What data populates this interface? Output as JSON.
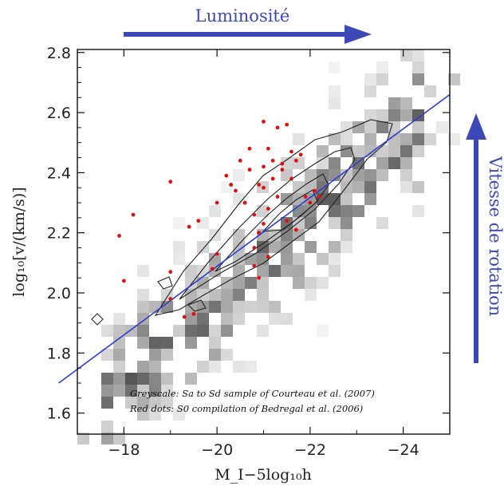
{
  "chart_data": {
    "type": "scatter",
    "xlabel": "M_I−5log₁₀h",
    "ylabel": "log₁₀[v/(km/s)]",
    "xlim": [
      -17,
      -25
    ],
    "ylim": [
      1.53,
      2.81
    ],
    "x_ticks": [
      -18,
      -20,
      -22,
      -24
    ],
    "x_tick_labels": [
      "−18",
      "−20",
      "−22",
      "−24"
    ],
    "y_ticks": [
      1.6,
      1.8,
      2.0,
      2.2,
      2.4,
      2.6,
      2.8
    ],
    "y_tick_labels": [
      "1.6",
      "1.8",
      "2.0",
      "2.2",
      "2.4",
      "2.6",
      "2.8"
    ],
    "grid": false,
    "annotations": [
      "Greyscale: Sa to Sd sample of Courteau et al. (2007)",
      "Red dots: S0 compilation of Bedregal et al. (2006)"
    ],
    "fit_line": {
      "color": "#2c3fd0",
      "points": [
        [
          -16.6,
          1.7
        ],
        [
          -25.0,
          2.66
        ]
      ]
    },
    "series": [
      {
        "color": "#e01010",
        "points": [
          [
            -17.9,
            2.19
          ],
          [
            -18.0,
            2.04
          ],
          [
            -18.2,
            2.26
          ],
          [
            -19.0,
            2.37
          ],
          [
            -19.0,
            2.07
          ],
          [
            -19.0,
            1.98
          ],
          [
            -19.4,
            2.22
          ],
          [
            -19.6,
            2.24
          ],
          [
            -19.5,
            1.93
          ],
          [
            -19.3,
            1.92
          ],
          [
            -19.9,
            2.08
          ],
          [
            -20.0,
            2.13
          ],
          [
            -20.0,
            2.3
          ],
          [
            -20.2,
            2.39
          ],
          [
            -20.3,
            2.36
          ],
          [
            -20.5,
            2.44
          ],
          [
            -20.4,
            2.34
          ],
          [
            -20.6,
            2.3
          ],
          [
            -20.7,
            2.48
          ],
          [
            -20.7,
            2.41
          ],
          [
            -20.8,
            2.26
          ],
          [
            -20.8,
            2.15
          ],
          [
            -20.8,
            2.09
          ],
          [
            -20.9,
            2.2
          ],
          [
            -20.9,
            2.36
          ],
          [
            -21.0,
            2.57
          ],
          [
            -21.0,
            2.42
          ],
          [
            -21.0,
            2.23
          ],
          [
            -21.1,
            2.48
          ],
          [
            -21.1,
            2.28
          ],
          [
            -21.1,
            2.12
          ],
          [
            -21.2,
            2.44
          ],
          [
            -21.2,
            2.38
          ],
          [
            -21.3,
            2.32
          ],
          [
            -21.3,
            2.55
          ],
          [
            -21.4,
            2.43
          ],
          [
            -21.4,
            2.41
          ],
          [
            -21.5,
            2.24
          ],
          [
            -21.6,
            2.47
          ],
          [
            -21.6,
            2.38
          ],
          [
            -21.7,
            2.44
          ],
          [
            -21.7,
            2.21
          ],
          [
            -21.9,
            2.32
          ],
          [
            -22.0,
            2.3
          ],
          [
            -22.1,
            2.34
          ],
          [
            -22.2,
            2.32
          ],
          [
            -21.8,
            2.46
          ],
          [
            -21.0,
            2.35
          ],
          [
            -20.9,
            2.05
          ],
          [
            -21.5,
            2.56
          ]
        ]
      }
    ]
  },
  "decor": {
    "top_arrow_label": "Luminosité",
    "right_arrow_label": "Vitesse de rotation",
    "arrow_color": "#3c48b8"
  }
}
